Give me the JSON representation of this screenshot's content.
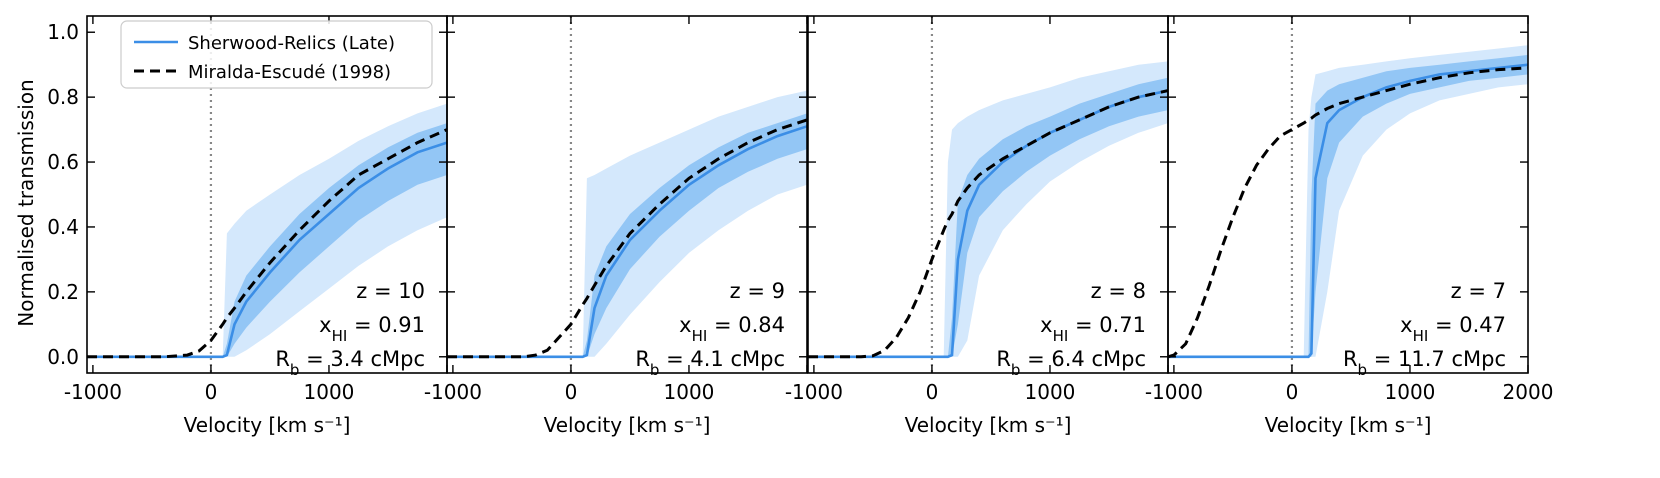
{
  "chart_data": {
    "type": "line",
    "ylabel": "Normalised transmission",
    "xlabel": "Velocity [km s⁻¹]",
    "xlim": [
      -1050,
      2000
    ],
    "ylim": [
      -0.05,
      1.05
    ],
    "x_ticks": [
      -1000,
      0,
      1000,
      2000
    ],
    "x_tick_labels": [
      "-1000",
      "0",
      "1000",
      "2000"
    ],
    "y_ticks": [
      0.0,
      0.2,
      0.4,
      0.6,
      0.8,
      1.0
    ],
    "y_tick_labels": [
      "0.0",
      "0.2",
      "0.4",
      "0.6",
      "0.8",
      "1.0"
    ],
    "legend": [
      {
        "label": "Sherwood-Relics (Late)",
        "style": "solid",
        "color": "#3b8ee6"
      },
      {
        "label": "Miralda-Escudé (1998)",
        "style": "dashed",
        "color": "#000000"
      }
    ],
    "vertical_reference_x": 0,
    "colors": {
      "median": "#3b8ee6",
      "band_inner": "#93c6f5",
      "band_outer": "#d4e8fc",
      "model": "#000000",
      "vline": "#888888"
    },
    "panels": [
      {
        "z_label": "z = 10",
        "x_label_main": "x",
        "x_label_sub": "HI",
        "x_label_value": " = 0.91",
        "r_label_main": "R",
        "r_label_sub": "b",
        "r_label_value": " = 3.4 cMpc",
        "x": [
          -1050,
          -400,
          -200,
          -100,
          0,
          100,
          135,
          200,
          300,
          500,
          750,
          1000,
          1250,
          1500,
          1750,
          2000
        ],
        "median": [
          0,
          0,
          0,
          0,
          0,
          0,
          0.005,
          0.1,
          0.17,
          0.26,
          0.36,
          0.44,
          0.52,
          0.58,
          0.63,
          0.66
        ],
        "inner_hi": [
          0,
          0,
          0,
          0,
          0,
          0,
          0.04,
          0.17,
          0.25,
          0.34,
          0.44,
          0.52,
          0.59,
          0.645,
          0.69,
          0.72
        ],
        "inner_lo": [
          0,
          0,
          0,
          0,
          0,
          0,
          0,
          0.04,
          0.09,
          0.17,
          0.26,
          0.34,
          0.42,
          0.48,
          0.53,
          0.56
        ],
        "outer_hi": [
          0,
          0,
          0,
          0,
          0,
          0,
          0.38,
          0.41,
          0.45,
          0.5,
          0.56,
          0.61,
          0.665,
          0.71,
          0.75,
          0.78
        ],
        "outer_lo": [
          0,
          0,
          0,
          0,
          0,
          0,
          0,
          0,
          0.02,
          0.07,
          0.14,
          0.21,
          0.28,
          0.34,
          0.39,
          0.43
        ],
        "model": [
          0,
          0,
          0.005,
          0.018,
          0.05,
          0.1,
          0.12,
          0.15,
          0.2,
          0.29,
          0.39,
          0.48,
          0.56,
          0.61,
          0.66,
          0.7
        ]
      },
      {
        "z_label": "z = 9",
        "x_label_main": "x",
        "x_label_sub": "HI",
        "x_label_value": " = 0.84",
        "r_label_main": "R",
        "r_label_sub": "b",
        "r_label_value": " = 4.1 cMpc",
        "x": [
          -1050,
          -400,
          -300,
          -200,
          -100,
          0,
          100,
          135,
          200,
          300,
          500,
          750,
          1000,
          1250,
          1500,
          1750,
          2000
        ],
        "median": [
          0,
          0,
          0,
          0,
          0,
          0,
          0,
          0.005,
          0.15,
          0.25,
          0.36,
          0.45,
          0.53,
          0.59,
          0.64,
          0.68,
          0.71
        ],
        "inner_hi": [
          0,
          0,
          0,
          0,
          0,
          0,
          0,
          0.05,
          0.25,
          0.34,
          0.44,
          0.52,
          0.59,
          0.645,
          0.69,
          0.72,
          0.75
        ],
        "inner_lo": [
          0,
          0,
          0,
          0,
          0,
          0,
          0,
          0,
          0.07,
          0.15,
          0.27,
          0.37,
          0.45,
          0.52,
          0.57,
          0.61,
          0.64
        ],
        "outer_hi": [
          0,
          0,
          0,
          0,
          0,
          0,
          0,
          0.55,
          0.56,
          0.58,
          0.62,
          0.66,
          0.7,
          0.74,
          0.77,
          0.8,
          0.82
        ],
        "outer_lo": [
          0,
          0,
          0,
          0,
          0,
          0,
          0,
          0,
          0,
          0.04,
          0.13,
          0.23,
          0.32,
          0.39,
          0.45,
          0.5,
          0.53
        ],
        "model": [
          0,
          0,
          0.005,
          0.02,
          0.06,
          0.1,
          0.16,
          0.18,
          0.22,
          0.28,
          0.38,
          0.47,
          0.55,
          0.61,
          0.66,
          0.7,
          0.73
        ]
      },
      {
        "z_label": "z = 8",
        "x_label_main": "x",
        "x_label_sub": "HI",
        "x_label_value": " = 0.71",
        "r_label_main": "R",
        "r_label_sub": "b",
        "r_label_value": " = 6.4 cMpc",
        "x": [
          -1050,
          -600,
          -500,
          -400,
          -300,
          -200,
          -100,
          0,
          100,
          135,
          170,
          220,
          300,
          400,
          600,
          800,
          1000,
          1250,
          1500,
          1750,
          2000
        ],
        "median": [
          0,
          0,
          0,
          0,
          0,
          0,
          0,
          0,
          0,
          0,
          0.005,
          0.3,
          0.45,
          0.53,
          0.6,
          0.65,
          0.69,
          0.73,
          0.77,
          0.8,
          0.82
        ],
        "inner_hi": [
          0,
          0,
          0,
          0,
          0,
          0,
          0,
          0,
          0,
          0,
          0.12,
          0.48,
          0.56,
          0.61,
          0.67,
          0.71,
          0.74,
          0.78,
          0.81,
          0.84,
          0.86
        ],
        "inner_lo": [
          0,
          0,
          0,
          0,
          0,
          0,
          0,
          0,
          0,
          0,
          0,
          0.1,
          0.32,
          0.43,
          0.51,
          0.57,
          0.62,
          0.67,
          0.71,
          0.74,
          0.76
        ],
        "outer_hi": [
          0,
          0,
          0,
          0,
          0,
          0,
          0,
          0,
          0,
          0.6,
          0.7,
          0.72,
          0.74,
          0.76,
          0.79,
          0.81,
          0.83,
          0.86,
          0.88,
          0.9,
          0.91
        ],
        "outer_lo": [
          0,
          0,
          0,
          0,
          0,
          0,
          0,
          0,
          0,
          0,
          0,
          0,
          0.05,
          0.25,
          0.39,
          0.47,
          0.54,
          0.6,
          0.65,
          0.69,
          0.72
        ],
        "model": [
          0,
          0,
          0.003,
          0.02,
          0.06,
          0.12,
          0.2,
          0.3,
          0.39,
          0.42,
          0.44,
          0.48,
          0.52,
          0.56,
          0.61,
          0.65,
          0.69,
          0.73,
          0.77,
          0.8,
          0.82
        ]
      },
      {
        "z_label": "z = 7",
        "x_label_main": "x",
        "x_label_sub": "HI",
        "x_label_value": " = 0.47",
        "r_label_main": "R",
        "r_label_sub": "b",
        "r_label_value": " = 11.7 cMpc",
        "x": [
          -1050,
          -1000,
          -900,
          -800,
          -700,
          -600,
          -500,
          -400,
          -300,
          -200,
          -100,
          0,
          100,
          140,
          165,
          200,
          300,
          400,
          600,
          800,
          1000,
          1250,
          1500,
          1750,
          2000
        ],
        "median": [
          0,
          0,
          0,
          0,
          0,
          0,
          0,
          0,
          0,
          0,
          0,
          0,
          0,
          0,
          0.01,
          0.55,
          0.72,
          0.76,
          0.8,
          0.83,
          0.85,
          0.87,
          0.88,
          0.89,
          0.9
        ],
        "inner_hi": [
          0,
          0,
          0,
          0,
          0,
          0,
          0,
          0,
          0,
          0,
          0,
          0,
          0,
          0,
          0.5,
          0.78,
          0.82,
          0.84,
          0.86,
          0.88,
          0.89,
          0.9,
          0.91,
          0.92,
          0.93
        ],
        "inner_lo": [
          0,
          0,
          0,
          0,
          0,
          0,
          0,
          0,
          0,
          0,
          0,
          0,
          0,
          0,
          0,
          0.2,
          0.55,
          0.66,
          0.74,
          0.78,
          0.81,
          0.83,
          0.85,
          0.86,
          0.87
        ],
        "outer_hi": [
          0,
          0,
          0,
          0,
          0,
          0,
          0,
          0,
          0,
          0,
          0,
          0,
          0,
          0.7,
          0.8,
          0.87,
          0.88,
          0.89,
          0.9,
          0.91,
          0.92,
          0.93,
          0.94,
          0.95,
          0.96
        ],
        "outer_lo": [
          0,
          0,
          0,
          0,
          0,
          0,
          0,
          0,
          0,
          0,
          0,
          0,
          0,
          0,
          0,
          0,
          0.2,
          0.45,
          0.62,
          0.7,
          0.75,
          0.79,
          0.81,
          0.83,
          0.84
        ],
        "model": [
          0,
          0.005,
          0.04,
          0.12,
          0.22,
          0.33,
          0.43,
          0.52,
          0.59,
          0.64,
          0.68,
          0.7,
          0.72,
          0.73,
          0.735,
          0.745,
          0.765,
          0.78,
          0.8,
          0.82,
          0.84,
          0.86,
          0.875,
          0.885,
          0.89
        ]
      }
    ]
  }
}
